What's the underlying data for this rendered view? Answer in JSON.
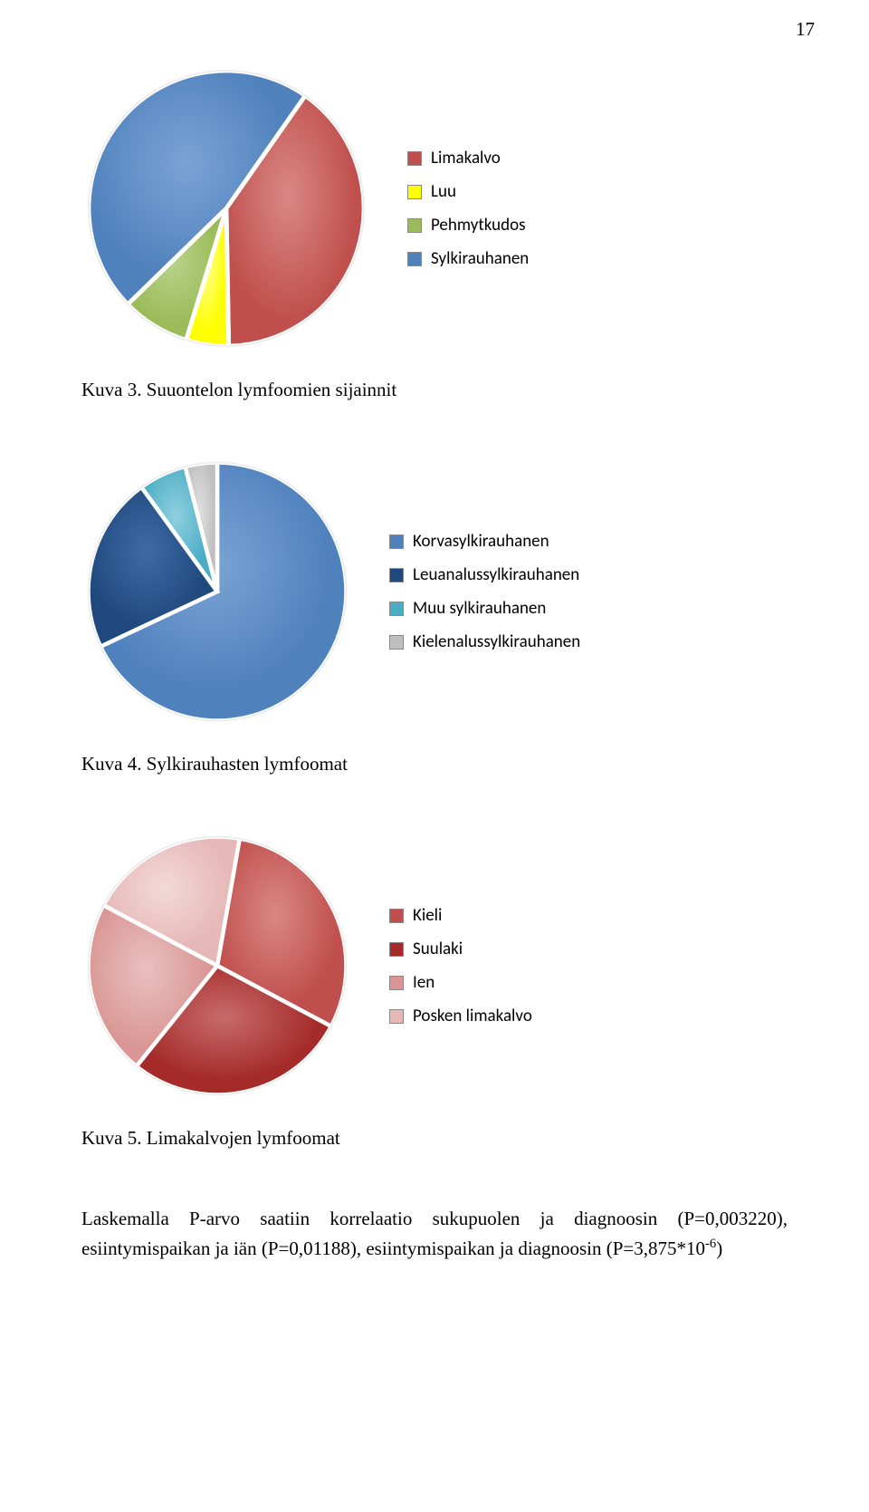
{
  "page_number": "17",
  "chart1": {
    "type": "pie",
    "background_color": "#ffffff",
    "slices": [
      {
        "label": "Limakalvo",
        "value": 40,
        "fill": "#c0504d",
        "edge": "#ffffff",
        "highlight": "#d98886"
      },
      {
        "label": "Luu",
        "value": 5,
        "fill": "#ffff00",
        "edge": "#ffffff",
        "highlight": "#ffff99"
      },
      {
        "label": "Pehmytkudos",
        "value": 8,
        "fill": "#9bbb59",
        "edge": "#ffffff",
        "highlight": "#b9d38a"
      },
      {
        "label": "Sylkirauhanen",
        "value": 47,
        "fill": "#4f81bd",
        "edge": "#ffffff",
        "highlight": "#7ba3d4"
      }
    ],
    "start_angle_deg": -55,
    "edge_width": 3,
    "caption": "Kuva 3. Suuontelon lymfoomien sijainnit"
  },
  "chart2": {
    "type": "pie",
    "background_color": "#ffffff",
    "slices": [
      {
        "label": "Korvasylkirauhanen",
        "value": 68,
        "fill": "#4f81bd",
        "edge": "#ffffff",
        "highlight": "#7ba3d4"
      },
      {
        "label": "Leuanalussylkirauhanen",
        "value": 22,
        "fill": "#1f497d",
        "edge": "#ffffff",
        "highlight": "#3f6aa5"
      },
      {
        "label": "Muu sylkirauhanen",
        "value": 6,
        "fill": "#4bacc6",
        "edge": "#ffffff",
        "highlight": "#8fd0de"
      },
      {
        "label": "Kielenalussylkirauhanen",
        "value": 4,
        "fill": "#bfbfbf",
        "edge": "#ffffff",
        "highlight": "#e0e0e0"
      }
    ],
    "start_angle_deg": -90,
    "edge_width": 3,
    "caption": "Kuva 4. Sylkirauhasten lymfoomat"
  },
  "chart3": {
    "type": "pie",
    "background_color": "#ffffff",
    "slices": [
      {
        "label": "Kieli",
        "value": 30,
        "fill": "#c0504d",
        "edge": "#ffffff",
        "highlight": "#d98886"
      },
      {
        "label": "Suulaki",
        "value": 28,
        "fill": "#a52a2a",
        "edge": "#ffffff",
        "highlight": "#c76b6b"
      },
      {
        "label": "Ien",
        "value": 22,
        "fill": "#d99694",
        "edge": "#ffffff",
        "highlight": "#e9c0bf"
      },
      {
        "label": "Posken limakalvo",
        "value": 20,
        "fill": "#e6b8b7",
        "edge": "#ffffff",
        "highlight": "#f2d9d8"
      }
    ],
    "start_angle_deg": -80,
    "edge_width": 3,
    "caption": "Kuva 5. Limakalvojen lymfoomat"
  },
  "body_text": {
    "part1": "Laskemalla P-arvo saatiin korrelaatio sukupuolen ja diagnoosin (P=0,003220), esiintymispaikan ja iän (P=0,01188), esiintymispaikan ja diagnoosin (P=3,875*10",
    "sup": "-6",
    "part2": ")"
  }
}
